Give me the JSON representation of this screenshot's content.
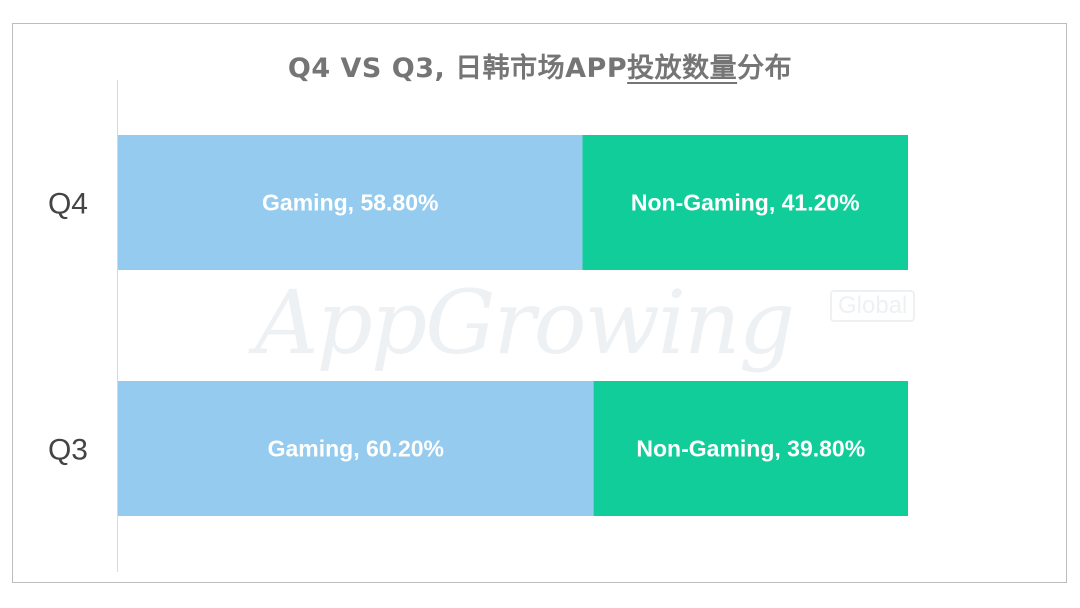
{
  "chart_data": {
    "type": "bar",
    "orientation": "horizontal",
    "stacked": true,
    "title_parts": [
      "Q4 VS Q3, 日韩市场APP",
      "投放数量",
      "分布"
    ],
    "categories": [
      "Q4",
      "Q3"
    ],
    "series": [
      {
        "name": "Gaming",
        "values": [
          58.8,
          60.2
        ],
        "color": "#95cbee"
      },
      {
        "name": "Non-Gaming",
        "values": [
          41.2,
          39.8
        ],
        "color": "#11cd99"
      }
    ],
    "unit": "%",
    "xlim": [
      0,
      100
    ],
    "grid": false,
    "legend": "none",
    "data_labels": [
      [
        "Gaming, 58.80%",
        "Non-Gaming, 41.20%"
      ],
      [
        "Gaming, 60.20%",
        "Non-Gaming, 39.80%"
      ]
    ]
  },
  "watermark": {
    "text": "AppGrowing",
    "sub": "Global"
  }
}
